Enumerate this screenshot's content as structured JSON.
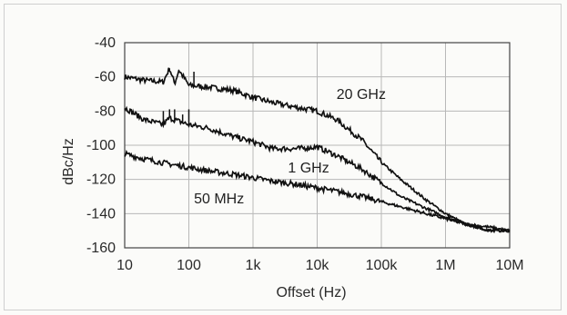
{
  "chart_data": {
    "type": "line",
    "title": "",
    "xlabel": "Offset (Hz)",
    "ylabel": "dBc/Hz",
    "x_scale": "log",
    "xlim": [
      10,
      10000000
    ],
    "ylim": [
      -160,
      -40
    ],
    "x_ticks": [
      10,
      100,
      1000,
      10000,
      100000,
      1000000,
      10000000
    ],
    "x_tick_labels": [
      "10",
      "100",
      "1k",
      "10k",
      "100k",
      "1M",
      "10M"
    ],
    "y_ticks": [
      -40,
      -60,
      -80,
      -100,
      -120,
      -140,
      -160
    ],
    "y_tick_labels": [
      "-40",
      "-60",
      "-80",
      "-100",
      "-120",
      "-140",
      "-160"
    ],
    "grid": true,
    "series": [
      {
        "name": "20 GHz",
        "x": [
          10,
          20,
          40,
          50,
          60,
          70,
          100,
          200,
          500,
          1000,
          2000,
          5000,
          10000,
          20000,
          50000,
          100000,
          200000,
          500000,
          1000000,
          2000000,
          5000000,
          10000000
        ],
        "y": [
          -60,
          -62,
          -63,
          -55,
          -64,
          -56,
          -65,
          -66,
          -68,
          -72,
          -75,
          -78,
          -80,
          -85,
          -97,
          -110,
          -120,
          -132,
          -140,
          -146,
          -150,
          -150
        ],
        "spurs": [
          [
            50,
            -55
          ],
          [
            70,
            -56
          ],
          [
            120,
            -57
          ]
        ]
      },
      {
        "name": "1 GHz",
        "x": [
          10,
          20,
          40,
          50,
          70,
          100,
          200,
          500,
          1000,
          2000,
          5000,
          10000,
          20000,
          50000,
          100000,
          200000,
          500000,
          1000000,
          2000000,
          5000000,
          10000000
        ],
        "y": [
          -78,
          -85,
          -88,
          -84,
          -86,
          -88,
          -90,
          -95,
          -98,
          -102,
          -102,
          -101,
          -106,
          -114,
          -122,
          -130,
          -137,
          -142,
          -146,
          -150,
          -150
        ],
        "spurs": [
          [
            40,
            -80
          ],
          [
            50,
            -79
          ],
          [
            60,
            -79
          ],
          [
            80,
            -82
          ],
          [
            100,
            -79
          ]
        ]
      },
      {
        "name": "50 MHz",
        "x": [
          10,
          20,
          50,
          100,
          200,
          500,
          1000,
          2000,
          5000,
          10000,
          20000,
          50000,
          100000,
          200000,
          500000,
          1000000,
          2000000,
          5000000,
          10000000
        ],
        "y": [
          -105,
          -108,
          -111,
          -113,
          -115,
          -117,
          -119,
          -121,
          -123,
          -125,
          -127,
          -130,
          -133,
          -136,
          -140,
          -143,
          -146,
          -148,
          -150
        ]
      }
    ],
    "annotations": [
      {
        "text": "20 GHz",
        "x": 20000,
        "y": -73
      },
      {
        "text": "1 GHz",
        "x": 3500,
        "y": -116
      },
      {
        "text": "50 MHz",
        "x": 120,
        "y": -134
      }
    ]
  }
}
